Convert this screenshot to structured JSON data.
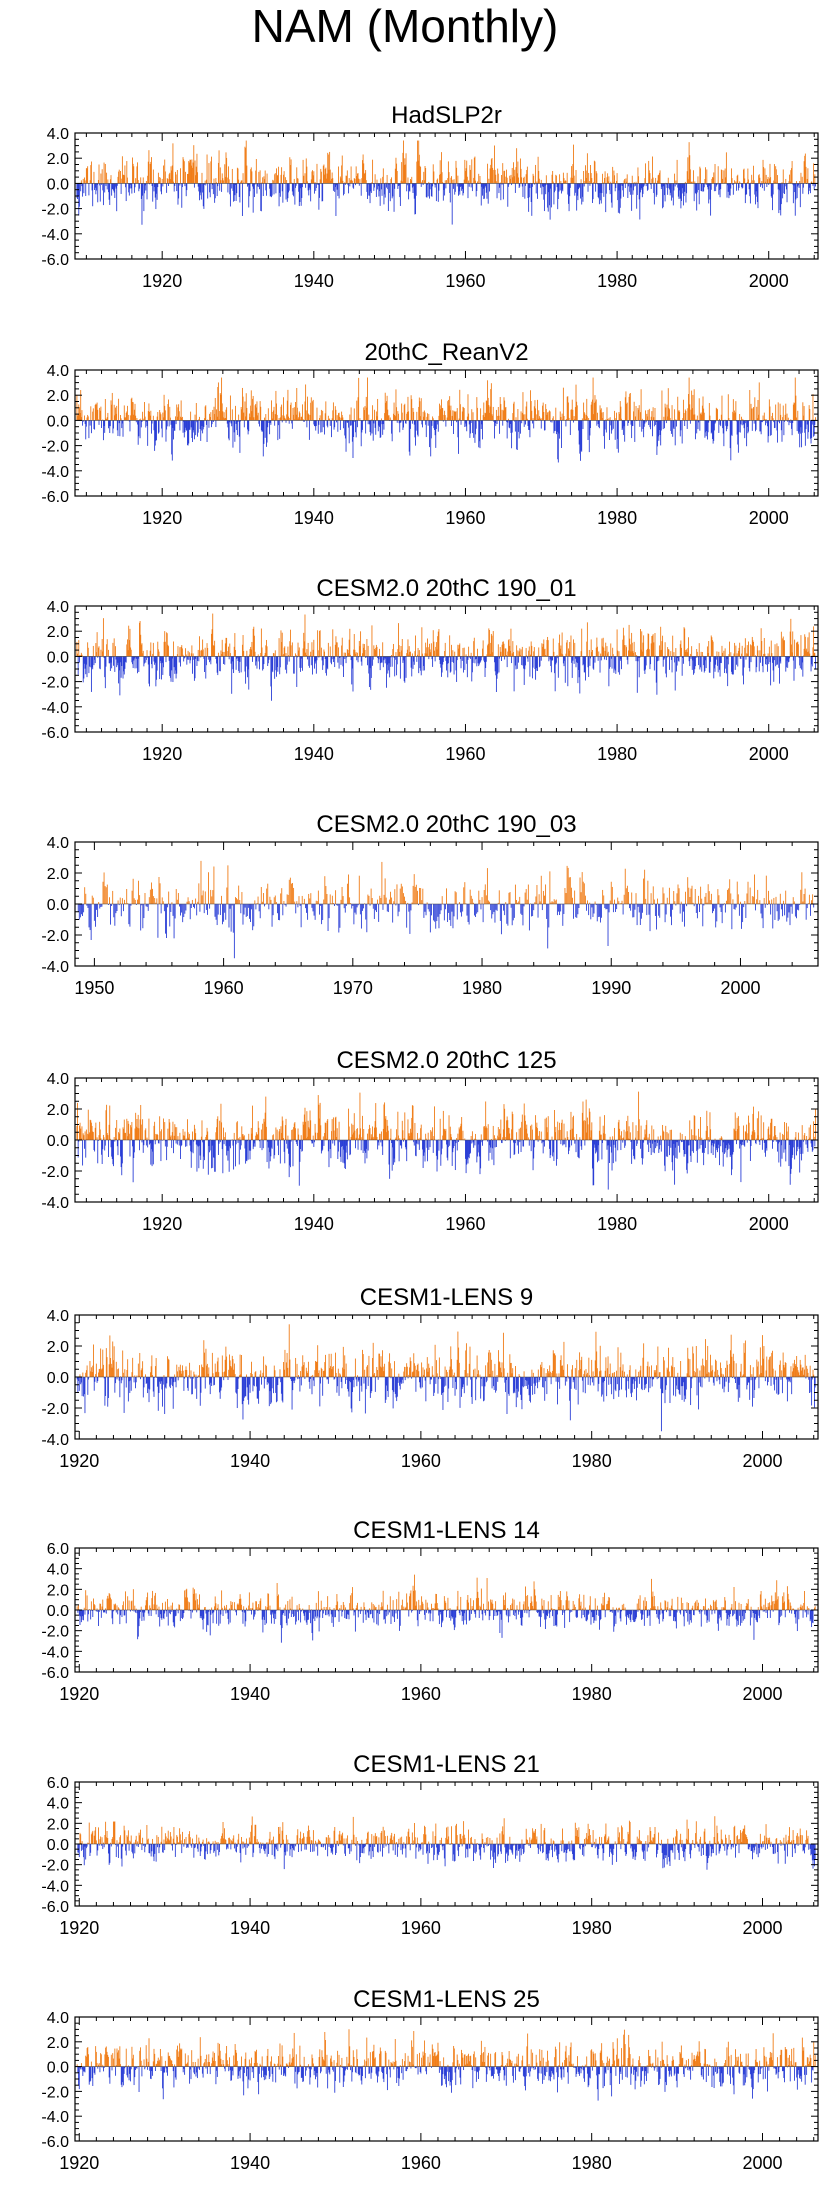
{
  "title": "NAM (Monthly)",
  "colors": {
    "positive": "#f07d18",
    "negative": "#2b3fd6",
    "frame": "#000000"
  },
  "chart_data": [
    {
      "type": "bar",
      "title": "HadSLP2r",
      "x_start": 1908.5,
      "x_end": 2006.5,
      "ylim": [
        -6.0,
        4.0
      ],
      "yticks": [
        "4.0",
        "2.0",
        "0.0",
        "-2.0",
        "-4.0",
        "-6.0"
      ],
      "xticks": [
        "1920",
        "1940",
        "1960",
        "1980",
        "2000"
      ],
      "typical_amplitude": 1.0,
      "seed": 11
    },
    {
      "type": "bar",
      "title": "20thC_ReanV2",
      "x_start": 1908.5,
      "x_end": 2006.5,
      "ylim": [
        -6.0,
        4.0
      ],
      "yticks": [
        "4.0",
        "2.0",
        "0.0",
        "-2.0",
        "-4.0",
        "-6.0"
      ],
      "xticks": [
        "1920",
        "1940",
        "1960",
        "1980",
        "2000"
      ],
      "typical_amplitude": 1.0,
      "seed": 23
    },
    {
      "type": "bar",
      "title": "CESM2.0 20thC 190_01",
      "x_start": 1908.5,
      "x_end": 2006.5,
      "ylim": [
        -6.0,
        4.0
      ],
      "yticks": [
        "4.0",
        "2.0",
        "0.0",
        "-2.0",
        "-4.0",
        "-6.0"
      ],
      "xticks": [
        "1920",
        "1940",
        "1960",
        "1980",
        "2000"
      ],
      "typical_amplitude": 1.0,
      "seed": 37
    },
    {
      "type": "bar",
      "title": "CESM2.0 20thC 190_03",
      "x_start": 1948.5,
      "x_end": 2006.0,
      "ylim": [
        -4.0,
        4.0
      ],
      "yticks": [
        "4.0",
        "2.0",
        "0.0",
        "-2.0",
        "-4.0"
      ],
      "xticks": [
        "1950",
        "1960",
        "1970",
        "1980",
        "1990",
        "2000"
      ],
      "typical_amplitude": 0.9,
      "seed": 41
    },
    {
      "type": "bar",
      "title": "CESM2.0 20thC 125",
      "x_start": 1908.5,
      "x_end": 2006.5,
      "ylim": [
        -4.0,
        4.0
      ],
      "yticks": [
        "4.0",
        "2.0",
        "0.0",
        "-2.0",
        "-4.0"
      ],
      "xticks": [
        "1920",
        "1940",
        "1960",
        "1980",
        "2000"
      ],
      "typical_amplitude": 0.9,
      "seed": 53
    },
    {
      "type": "bar",
      "title": "CESM1-LENS 9",
      "x_start": 1919.5,
      "x_end": 2006.5,
      "ylim": [
        -4.0,
        4.0
      ],
      "yticks": [
        "4.0",
        "2.0",
        "0.0",
        "-2.0",
        "-4.0"
      ],
      "xticks": [
        "1920",
        "1940",
        "1960",
        "1980",
        "2000"
      ],
      "typical_amplitude": 0.9,
      "seed": 67
    },
    {
      "type": "bar",
      "title": "CESM1-LENS 14",
      "x_start": 1919.5,
      "x_end": 2006.5,
      "ylim": [
        -6.0,
        6.0
      ],
      "yticks": [
        "6.0",
        "4.0",
        "2.0",
        "0.0",
        "-2.0",
        "-4.0",
        "-6.0"
      ],
      "xticks": [
        "1920",
        "1940",
        "1960",
        "1980",
        "2000"
      ],
      "typical_amplitude": 0.9,
      "seed": 71
    },
    {
      "type": "bar",
      "title": "CESM1-LENS 21",
      "x_start": 1919.5,
      "x_end": 2006.5,
      "ylim": [
        -6.0,
        6.0
      ],
      "yticks": [
        "6.0",
        "4.0",
        "2.0",
        "0.0",
        "-2.0",
        "-4.0",
        "-6.0"
      ],
      "xticks": [
        "1920",
        "1940",
        "1960",
        "1980",
        "2000"
      ],
      "typical_amplitude": 0.9,
      "seed": 83
    },
    {
      "type": "bar",
      "title": "CESM1-LENS 25",
      "x_start": 1919.5,
      "x_end": 2006.5,
      "ylim": [
        -6.0,
        4.0
      ],
      "yticks": [
        "4.0",
        "2.0",
        "0.0",
        "-2.0",
        "-4.0",
        "-6.0"
      ],
      "xticks": [
        "1920",
        "1940",
        "1960",
        "1980",
        "2000"
      ],
      "typical_amplitude": 0.9,
      "seed": 97
    }
  ]
}
